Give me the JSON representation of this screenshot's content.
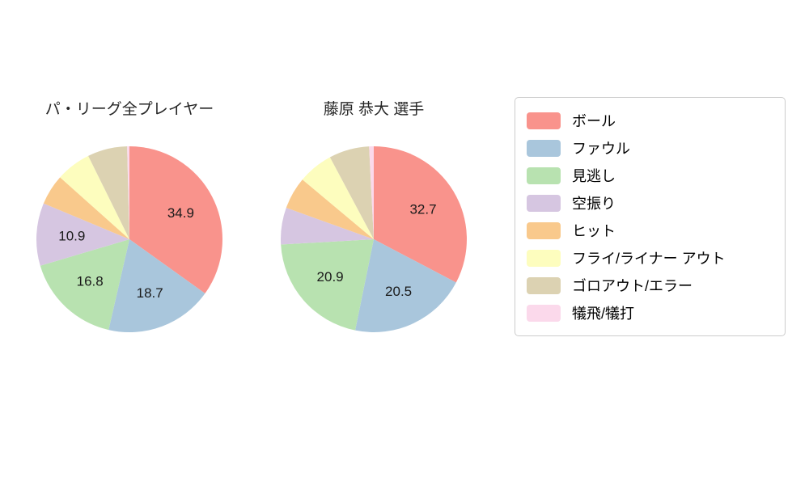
{
  "figure": {
    "background": "#ffffff"
  },
  "chart_data": [
    {
      "type": "pie",
      "title": "パ・リーグ全プレイヤー",
      "labels": [
        "ボール",
        "ファウル",
        "見逃し",
        "空振り",
        "ヒット",
        "フライ/ライナー アウト",
        "ゴロアウト/エラー",
        "犠飛/犠打"
      ],
      "values": [
        34.9,
        18.7,
        16.8,
        10.9,
        5.3,
        6.1,
        6.9,
        0.4
      ],
      "value_labels": [
        "34.9",
        "18.7",
        "16.8",
        "10.9",
        "",
        "",
        "",
        ""
      ],
      "colors": [
        "#F9938C",
        "#A9C6DC",
        "#B8E2B0",
        "#D6C6E1",
        "#F9C98C",
        "#FDFDBE",
        "#DCD2B2",
        "#FBD9EB"
      ],
      "start_angle_deg": 90,
      "direction": "clockwise",
      "grid": false
    },
    {
      "type": "pie",
      "title": "藤原 恭大  選手",
      "labels": [
        "ボール",
        "ファウル",
        "見逃し",
        "空振り",
        "ヒット",
        "フライ/ライナー アウト",
        "ゴロアウト/エラー",
        "犠飛/犠打"
      ],
      "values": [
        32.7,
        20.5,
        20.9,
        6.4,
        5.6,
        6.1,
        7.0,
        0.8
      ],
      "value_labels": [
        "32.7",
        "20.5",
        "20.9",
        "",
        "",
        "",
        "",
        ""
      ],
      "colors": [
        "#F9938C",
        "#A9C6DC",
        "#B8E2B0",
        "#D6C6E1",
        "#F9C98C",
        "#FDFDBE",
        "#DCD2B2",
        "#FBD9EB"
      ],
      "start_angle_deg": 90,
      "direction": "clockwise",
      "grid": false
    }
  ],
  "legend": {
    "position": "right",
    "items": [
      {
        "label": "ボール",
        "color": "#F9938C"
      },
      {
        "label": "ファウル",
        "color": "#A9C6DC"
      },
      {
        "label": "見逃し",
        "color": "#B8E2B0"
      },
      {
        "label": "空振り",
        "color": "#D6C6E1"
      },
      {
        "label": "ヒット",
        "color": "#F9C98C"
      },
      {
        "label": "フライ/ライナー アウト",
        "color": "#FDFDBE"
      },
      {
        "label": "ゴロアウト/エラー",
        "color": "#DCD2B2"
      },
      {
        "label": "犠飛/犠打",
        "color": "#FBD9EB"
      }
    ]
  }
}
